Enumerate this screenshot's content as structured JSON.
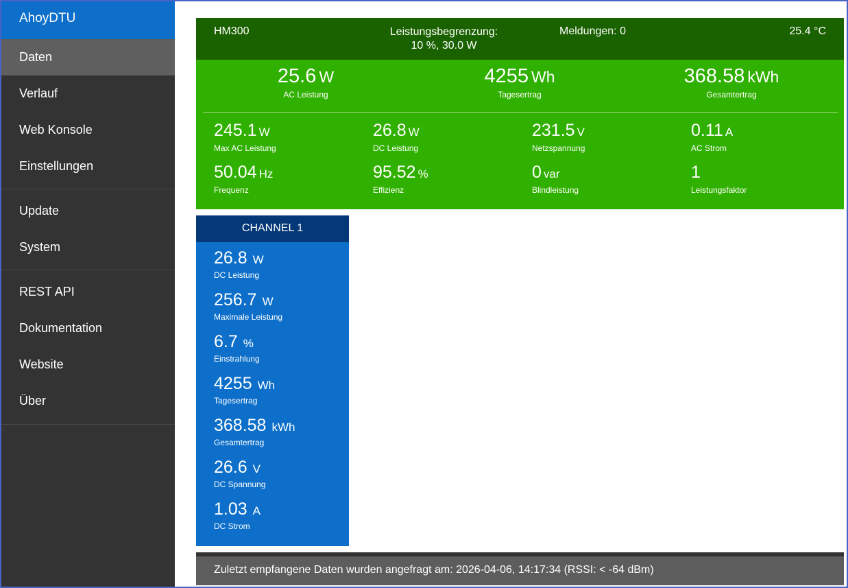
{
  "sidebar": {
    "brand": "AhoyDTU",
    "items": [
      {
        "label": "Daten"
      },
      {
        "label": "Verlauf"
      },
      {
        "label": "Web Konsole"
      },
      {
        "label": "Einstellungen"
      },
      {
        "label": "Update"
      },
      {
        "label": "System"
      },
      {
        "label": "REST API"
      },
      {
        "label": "Dokumentation"
      },
      {
        "label": "Website"
      },
      {
        "label": "Über"
      }
    ]
  },
  "inverter": {
    "name": "HM300",
    "limit_label": "Leistungsbegrenzung:",
    "limit_value": "10 %, 30.0 W",
    "messages": "Meldungen: 0",
    "temperature": "25.4 °C",
    "big": [
      {
        "value": "25.6",
        "unit": "W",
        "label": "AC Leistung"
      },
      {
        "value": "4255",
        "unit": "Wh",
        "label": "Tagesertrag"
      },
      {
        "value": "368.58",
        "unit": "kWh",
        "label": "Gesamtertrag"
      }
    ],
    "small": [
      {
        "value": "245.1",
        "unit": "W",
        "label": "Max AC Leistung"
      },
      {
        "value": "26.8",
        "unit": "W",
        "label": "DC Leistung"
      },
      {
        "value": "231.5",
        "unit": "V",
        "label": "Netzspannung"
      },
      {
        "value": "0.11",
        "unit": "A",
        "label": "AC Strom"
      },
      {
        "value": "50.04",
        "unit": "Hz",
        "label": "Frequenz"
      },
      {
        "value": "95.52",
        "unit": "%",
        "label": "Effizienz"
      },
      {
        "value": "0",
        "unit": "var",
        "label": "Blindleistung"
      },
      {
        "value": "1",
        "unit": "",
        "label": "Leistungsfaktor"
      }
    ]
  },
  "channel": {
    "title": "CHANNEL 1",
    "items": [
      {
        "value": "26.8",
        "unit": "W",
        "label": "DC Leistung"
      },
      {
        "value": "256.7",
        "unit": "W",
        "label": "Maximale Leistung"
      },
      {
        "value": "6.7",
        "unit": "%",
        "label": "Einstrahlung"
      },
      {
        "value": "4255",
        "unit": "Wh",
        "label": "Tagesertrag"
      },
      {
        "value": "368.58",
        "unit": "kWh",
        "label": "Gesamtertrag"
      },
      {
        "value": "26.6",
        "unit": "V",
        "label": "DC Spannung"
      },
      {
        "value": "1.03",
        "unit": "A",
        "label": "DC Strom"
      }
    ]
  },
  "footer": {
    "text": "Zuletzt empfangene Daten wurden angefragt am: 2026-04-06, 14:17:34 (RSSI: < -64 dBm)"
  },
  "colors": {
    "brand": "#0d6fc9",
    "sidebar": "#333333",
    "inverter_header": "#1a6100",
    "inverter_body": "#30b000",
    "channel_header": "#053877"
  }
}
